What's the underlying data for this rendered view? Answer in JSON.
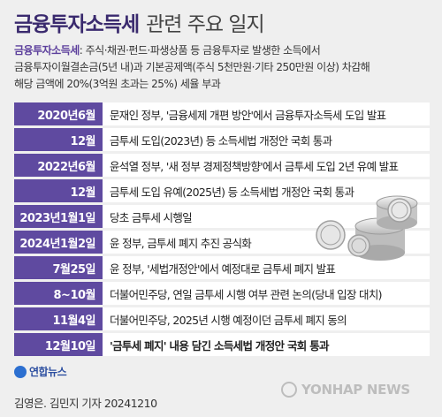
{
  "title": {
    "bold": "금융투자소득세",
    "light": "관련 주요 일지"
  },
  "description": {
    "term": "금융투자소득세",
    "line1_rest": ": 주식·채권·펀드·파생상품 등 금융투자로 발생한 소득에서",
    "line2": "금융투자이월결손금(5년 내)과 기본공제액(주식 5천만원·기타 250만원 이상) 차감해",
    "line3": "해당 금액에 20%(3억원 초과는 25%) 세율 부과"
  },
  "timeline": [
    {
      "date": "2020년6월",
      "event": "문재인 정부, '금융세제 개편 방안'에서 금융투자소득세 도입 발표"
    },
    {
      "date": "12월",
      "event": "금투세 도입(2023년) 등 소득세법 개정안 국회 통과"
    },
    {
      "date": "2022년6월",
      "event": "윤석열 정부, '새 정부 경제정책방향'에서 금투세 도입 2년 유예 발표"
    },
    {
      "date": "12월",
      "event": "금투세 도입 유예(2025년) 등 소득세법 개정안 국회 통과"
    },
    {
      "date": "2023년1월1일",
      "event": "당초 금투세 시행일"
    },
    {
      "date": "2024년1월2일",
      "event": "윤 정부, 금투세 폐지 추진 공식화"
    },
    {
      "date": "7월25일",
      "event": "윤 정부, '세법개정안'에서 예정대로 금투세 폐지 발표"
    },
    {
      "date": "8~10월",
      "event": "더불어민주당, 연일 금투세 시행 여부 관련 논의(당내 입장 대치)"
    },
    {
      "date": "11월4일",
      "event": "더불어민주당, 2025년 시행 예정이던 금투세 폐지 동의"
    },
    {
      "date": "12월10일",
      "event": "'금투세 폐지' 내용 담긴 소득세법 개정안 국회 통과"
    }
  ],
  "logo": {
    "text": "연합뉴스"
  },
  "credit": "김영은. 김민지 기자 20241210",
  "watermark": "YONHAP NEWS",
  "colors": {
    "accent": "#5f4aa0",
    "title": "#3a2a6e",
    "term": "#5c3f9c"
  }
}
